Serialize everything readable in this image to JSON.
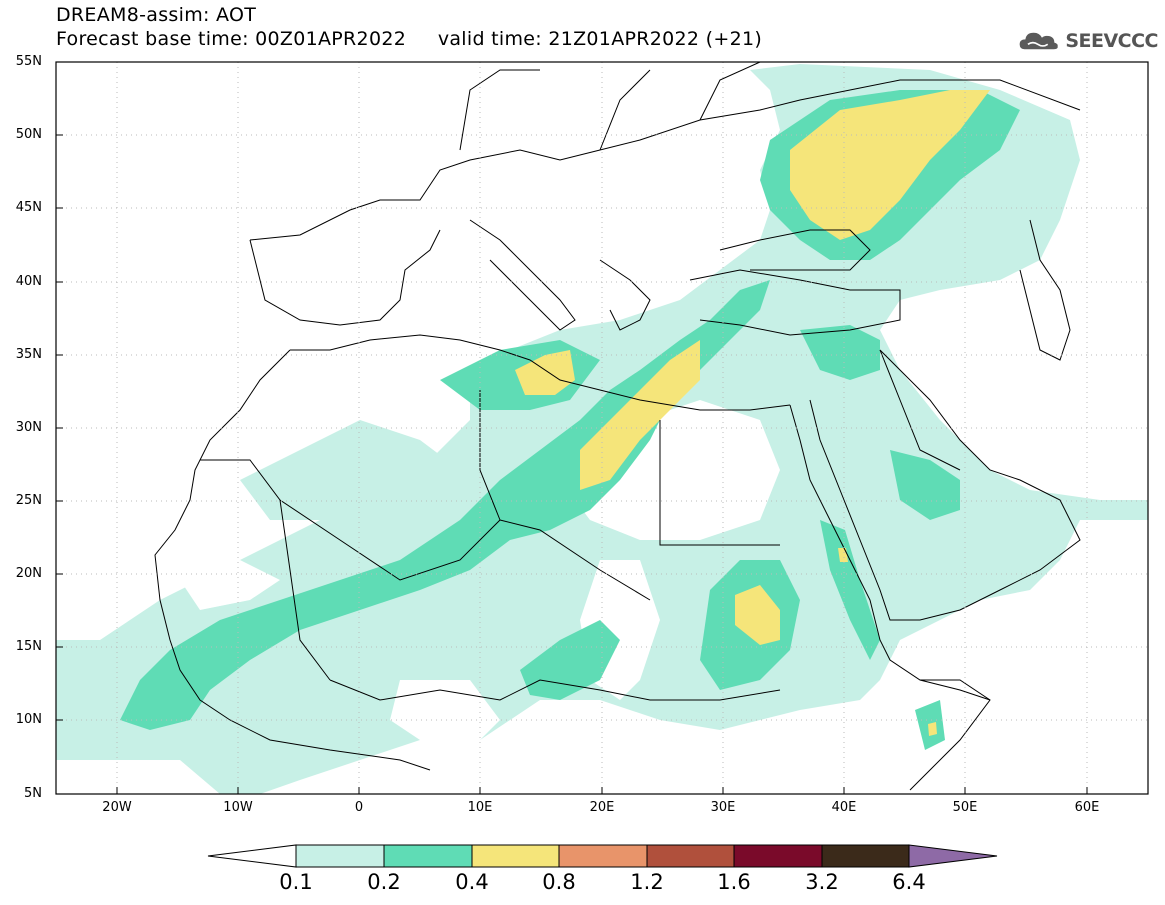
{
  "title_line1": "DREAM8-assim: AOT",
  "title_line2": "Forecast base time: 00Z01APR2022     valid time: 21Z01APR2022 (+21)",
  "logo": {
    "text": "SEEVCCC",
    "icon": "cloud-icon",
    "color": "#555555"
  },
  "map": {
    "lat_labels": [
      "55N",
      "50N",
      "45N",
      "40N",
      "35N",
      "30N",
      "25N",
      "20N",
      "15N",
      "10N",
      "5N"
    ],
    "lon_labels": [
      "20W",
      "10W",
      "0",
      "10E",
      "20E",
      "30E",
      "40E",
      "50E",
      "60E"
    ]
  },
  "colorbar": {
    "colors": [
      "#c7f0e6",
      "#5fdcb5",
      "#f5e57a",
      "#e8946a",
      "#b0503c",
      "#7a0a2a",
      "#3b2a1a",
      "#8e6aa6"
    ],
    "labels": [
      "0.1",
      "0.2",
      "0.4",
      "0.8",
      "1.2",
      "1.6",
      "3.2",
      "6.4"
    ]
  }
}
